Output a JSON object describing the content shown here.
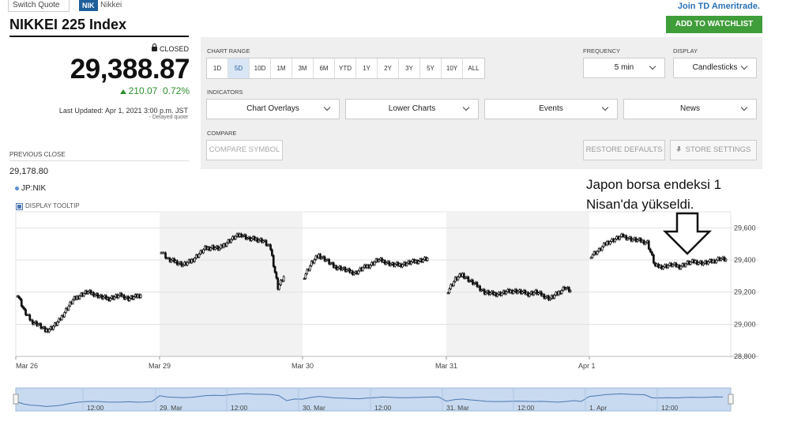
{
  "header": {
    "switch_quote": "Switch Quote",
    "badge": "NIK",
    "short_name": "Nikkei",
    "join_link": "Join TD Ameritrade.",
    "watchlist_button": "ADD TO WATCHLIST"
  },
  "quote": {
    "title": "NIKKEI 225 Index",
    "status": "CLOSED",
    "price": "29,388.87",
    "change": "210.07",
    "change_pct": "0.72%",
    "last_updated": "Last Updated: Apr 1, 2021 3:00 p.m. JST",
    "delayed": "- Delayed quote",
    "previous_close_label": "PREVIOUS CLOSE",
    "previous_close": "29,178.80",
    "series_label": "JP:NIK",
    "tooltip_label": "DISPLAY TOOLTIP",
    "up_color": "#2f8f2f"
  },
  "controls": {
    "chart_range_label": "CHART RANGE",
    "ranges": [
      "1D",
      "5D",
      "10D",
      "1M",
      "3M",
      "6M",
      "YTD",
      "1Y",
      "2Y",
      "3Y",
      "5Y",
      "10Y",
      "ALL"
    ],
    "active_range": "5D",
    "frequency_label": "FREQUENCY",
    "frequency_value": "5 min",
    "display_label": "DISPLAY",
    "display_value": "Candlesticks",
    "indicators_label": "INDICATORS",
    "indicators": [
      "Chart Overlays",
      "Lower Charts",
      "Events",
      "News"
    ],
    "compare_label": "COMPARE",
    "compare_button": "COMPARE SYMBOL",
    "restore_button": "RESTORE DEFAULTS",
    "store_button": "STORE SETTINGS",
    "accent_color": "#3f9d3a"
  },
  "annotation": {
    "line1": "Japon borsa endeksi 1",
    "line2": "Nisan'da yükseldi."
  },
  "chart_data": {
    "type": "candlestick",
    "title": "",
    "xlabel": "",
    "ylabel": "",
    "ylim": [
      28800,
      29700
    ],
    "y_ticks": [
      "29,600",
      "29,400",
      "29,200",
      "29,000",
      "28,800"
    ],
    "y_tick_values": [
      29600,
      29400,
      29200,
      29000,
      28800
    ],
    "x_ticks": [
      "Mar 26",
      "Mar 29",
      "Mar 30",
      "Mar 31",
      "Apr 1"
    ],
    "sessions": [
      {
        "day": "Mar 26",
        "points": [
          29190,
          29080,
          29020,
          29000,
          28960,
          28980,
          29020,
          29090,
          29150,
          29180,
          29200,
          29190,
          29170,
          29160,
          29170,
          29180,
          29160,
          29170,
          29190
        ]
      },
      {
        "day": "Mar 29",
        "points": [
          29460,
          29400,
          29390,
          29370,
          29390,
          29430,
          29470,
          29480,
          29470,
          29510,
          29540,
          29560,
          29530,
          29530,
          29520,
          29470,
          29230,
          29310
        ]
      },
      {
        "day": "Mar 30",
        "points": [
          29300,
          29380,
          29430,
          29400,
          29360,
          29350,
          29330,
          29320,
          29350,
          29370,
          29400,
          29390,
          29370,
          29370,
          29380,
          29390,
          29400,
          29410
        ]
      },
      {
        "day": "Mar 31",
        "points": [
          29210,
          29280,
          29310,
          29270,
          29240,
          29200,
          29190,
          29190,
          29200,
          29210,
          29200,
          29190,
          29200,
          29180,
          29160,
          29190,
          29230,
          29200
        ]
      },
      {
        "day": "Apr 1",
        "points": [
          29430,
          29460,
          29510,
          29530,
          29550,
          29530,
          29520,
          29510,
          29360,
          29360,
          29370,
          29360,
          29380,
          29390,
          29380,
          29390,
          29410,
          29400
        ]
      }
    ],
    "navigator_labels": [
      "12:00",
      "29. Mar",
      "12:00",
      "30. Mar",
      "12:00",
      "31. Mar",
      "12:00",
      "1. Apr",
      "12:00"
    ],
    "grid": true,
    "colors": {
      "candle": "#111111",
      "shade": "#f2f2f2",
      "navigator": "#c8daf0",
      "navigator_line": "#4a78b0"
    }
  }
}
